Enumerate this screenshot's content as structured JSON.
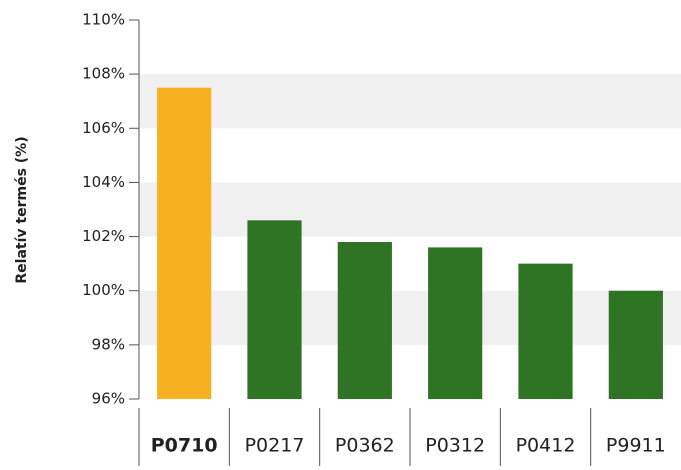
{
  "chart_data": {
    "type": "bar",
    "ylabel": "Relatív termés (%)",
    "categories": [
      "P0710",
      "P0217",
      "P0362",
      "P0312",
      "P0412",
      "P9911"
    ],
    "values": [
      107.5,
      102.6,
      101.8,
      101.6,
      101.0,
      100.0
    ],
    "colors": [
      "#f6b120",
      "#2f7424",
      "#2f7424",
      "#2f7424",
      "#2f7424",
      "#2f7424"
    ],
    "ylim": [
      96,
      110
    ],
    "yticks": [
      {
        "value": 96,
        "label": "96%"
      },
      {
        "value": 98,
        "label": "98%"
      },
      {
        "value": 100,
        "label": "100%"
      },
      {
        "value": 102,
        "label": "102%"
      },
      {
        "value": 104,
        "label": "104%"
      },
      {
        "value": 106,
        "label": "106%"
      },
      {
        "value": 108,
        "label": "108%"
      },
      {
        "value": 110,
        "label": "110%"
      }
    ],
    "grid": true
  }
}
